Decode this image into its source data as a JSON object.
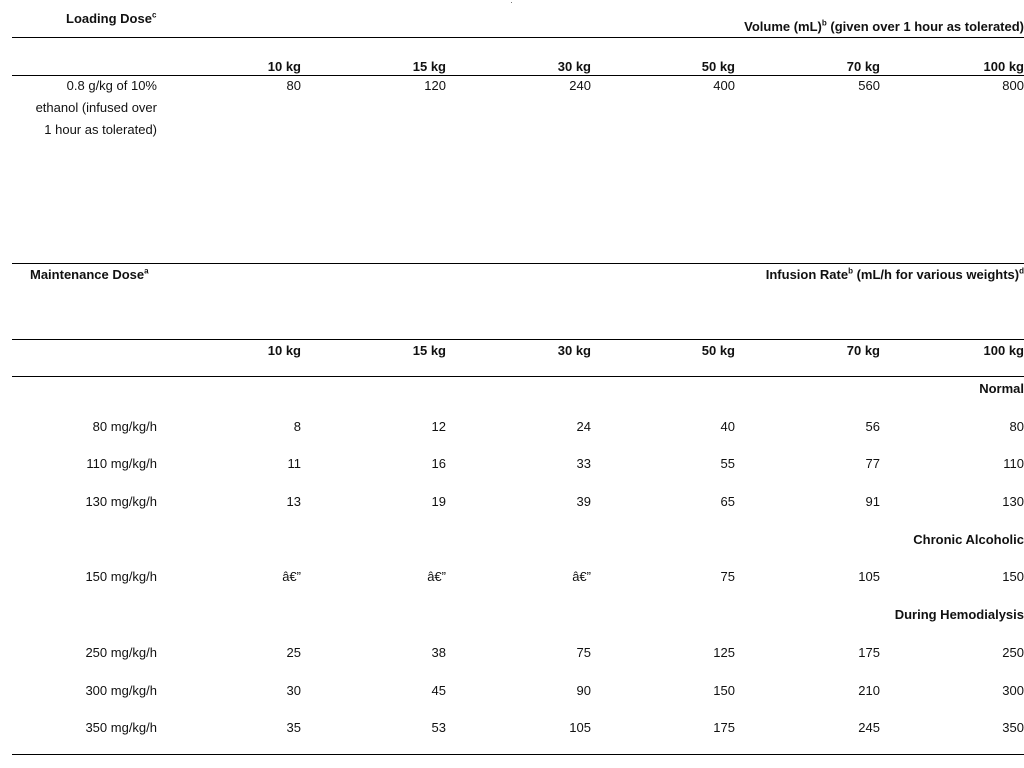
{
  "loading": {
    "title": "Loading Dose",
    "title_sup": "c",
    "volume_header": "Volume (mL)",
    "volume_header_sup": "b",
    "volume_header_rest": " (given over 1 hour as tolerated)",
    "weights": [
      "10 kg",
      "15 kg",
      "30 kg",
      "50 kg",
      "70 kg",
      "100 kg"
    ],
    "row": {
      "label_lines": [
        "0.8 g/kg of 10%",
        "ethanol (infused over",
        "1 hour as tolerated)"
      ],
      "values": [
        "80",
        "120",
        "240",
        "400",
        "560",
        "800"
      ]
    }
  },
  "maintenance": {
    "title": "Maintenance Dose",
    "title_sup": "a",
    "rate_header": "Infusion Rate",
    "rate_header_sup": "b",
    "rate_header_rest": " (mL/h for various weights)",
    "rate_header_sup2": "d",
    "weights": [
      "10 kg",
      "15 kg",
      "30 kg",
      "50 kg",
      "70 kg",
      "100 kg"
    ],
    "sections": [
      {
        "name": "Normal",
        "rows": [
          {
            "label": "80 mg/kg/h",
            "values": [
              "8",
              "12",
              "24",
              "40",
              "56",
              "80"
            ]
          },
          {
            "label": "110 mg/kg/h",
            "values": [
              "11",
              "16",
              "33",
              "55",
              "77",
              "110"
            ]
          },
          {
            "label": "130 mg/kg/h",
            "values": [
              "13",
              "19",
              "39",
              "65",
              "91",
              "130"
            ]
          }
        ]
      },
      {
        "name": "Chronic Alcoholic",
        "rows": [
          {
            "label": "150 mg/kg/h",
            "values": [
              "â€”",
              "â€”",
              "â€”",
              "75",
              "105",
              "150"
            ]
          }
        ]
      },
      {
        "name": "During Hemodialysis",
        "rows": [
          {
            "label": "250 mg/kg/h",
            "values": [
              "25",
              "38",
              "75",
              "125",
              "175",
              "250"
            ]
          },
          {
            "label": "300 mg/kg/h",
            "values": [
              "30",
              "45",
              "90",
              "150",
              "210",
              "300"
            ]
          },
          {
            "label": "350 mg/kg/h",
            "values": [
              "35",
              "53",
              "105",
              "175",
              "245",
              "350"
            ]
          }
        ]
      }
    ]
  }
}
